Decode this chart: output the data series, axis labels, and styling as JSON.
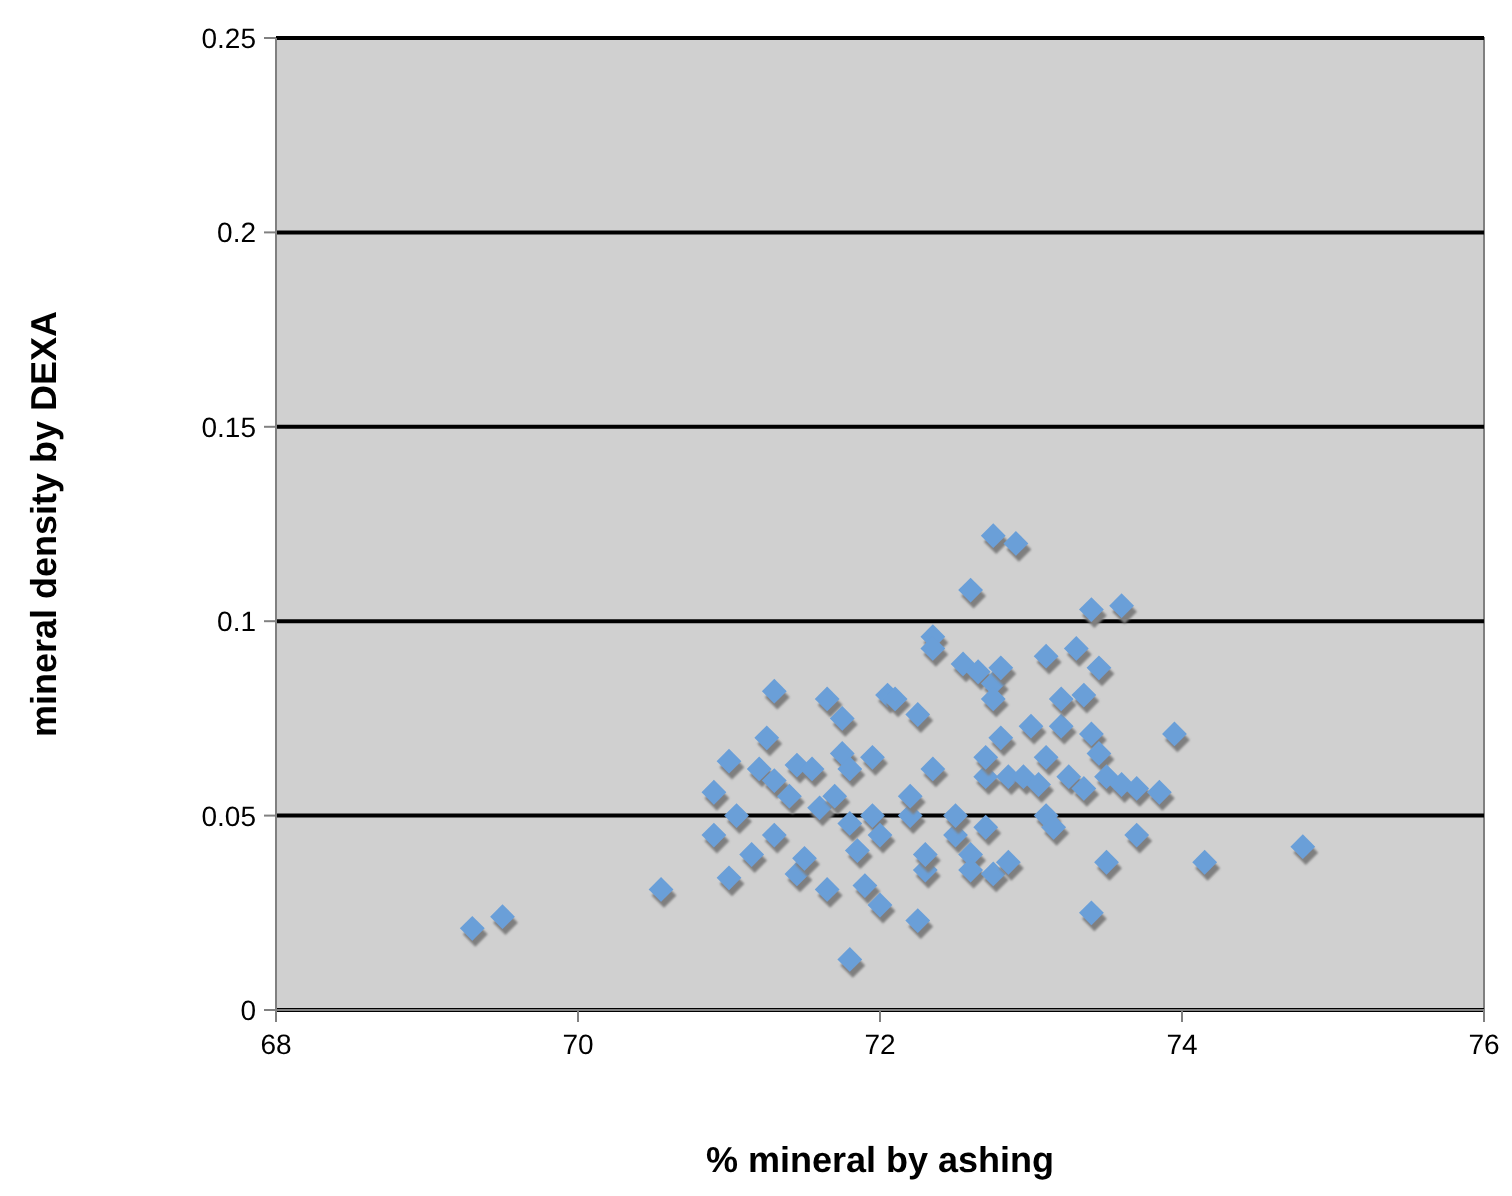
{
  "chart_data": {
    "type": "scatter",
    "xlabel": "% mineral by ashing",
    "ylabel": "mineral density by DEXA",
    "xlim": [
      68,
      76
    ],
    "xticks": [
      68,
      70,
      72,
      74,
      76
    ],
    "ylim": [
      0,
      0.25
    ],
    "yticks": [
      0,
      0.05,
      0.1,
      0.15,
      0.2,
      0.25
    ],
    "grid": "y",
    "marker": "diamond",
    "series": [
      {
        "color": "#6a9fd8",
        "x": [
          69.3,
          69.5,
          70.55,
          70.9,
          70.9,
          71.0,
          71.0,
          71.05,
          71.15,
          71.2,
          71.25,
          71.3,
          71.3,
          71.3,
          71.4,
          71.45,
          71.45,
          71.5,
          71.55,
          71.6,
          71.65,
          71.65,
          71.7,
          71.75,
          71.75,
          71.8,
          71.8,
          71.85,
          71.8,
          71.9,
          71.95,
          71.95,
          72.0,
          72.0,
          72.05,
          72.1,
          72.2,
          72.2,
          72.25,
          72.25,
          72.3,
          72.3,
          72.35,
          72.35,
          72.35,
          72.5,
          72.5,
          72.55,
          72.6,
          72.6,
          72.6,
          72.65,
          72.7,
          72.7,
          72.7,
          72.75,
          72.75,
          72.75,
          72.75,
          72.8,
          72.8,
          72.85,
          72.85,
          72.9,
          72.95,
          73.0,
          73.05,
          73.1,
          73.1,
          73.1,
          73.15,
          73.2,
          73.2,
          73.25,
          73.3,
          73.35,
          73.35,
          73.4,
          73.4,
          73.4,
          73.45,
          73.45,
          73.5,
          73.5,
          73.6,
          73.6,
          73.7,
          73.7,
          73.85,
          73.95,
          74.15,
          74.8
        ],
        "values": [
          0.021,
          0.024,
          0.031,
          0.045,
          0.056,
          0.064,
          0.034,
          0.05,
          0.04,
          0.062,
          0.07,
          0.082,
          0.059,
          0.045,
          0.055,
          0.063,
          0.035,
          0.039,
          0.062,
          0.052,
          0.031,
          0.08,
          0.055,
          0.075,
          0.066,
          0.062,
          0.048,
          0.041,
          0.013,
          0.032,
          0.065,
          0.05,
          0.045,
          0.027,
          0.081,
          0.08,
          0.05,
          0.055,
          0.076,
          0.023,
          0.036,
          0.04,
          0.062,
          0.096,
          0.093,
          0.045,
          0.05,
          0.089,
          0.108,
          0.04,
          0.036,
          0.087,
          0.06,
          0.065,
          0.047,
          0.122,
          0.084,
          0.08,
          0.035,
          0.088,
          0.07,
          0.06,
          0.038,
          0.12,
          0.06,
          0.073,
          0.058,
          0.091,
          0.065,
          0.05,
          0.047,
          0.073,
          0.08,
          0.06,
          0.093,
          0.081,
          0.057,
          0.103,
          0.071,
          0.025,
          0.066,
          0.088,
          0.06,
          0.038,
          0.104,
          0.058,
          0.057,
          0.045,
          0.056,
          0.071,
          0.038,
          0.042
        ]
      }
    ]
  }
}
